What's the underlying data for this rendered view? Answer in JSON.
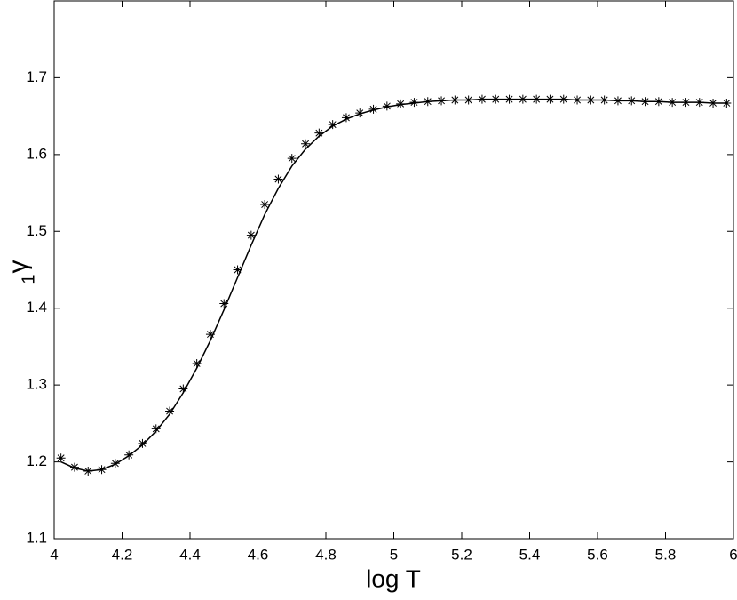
{
  "chart_data": {
    "type": "line",
    "xlabel": "log T",
    "ylabel": "γ",
    "ylabel_subscript": "1",
    "x": [
      4.02,
      4.06,
      4.1,
      4.14,
      4.18,
      4.22,
      4.26,
      4.3,
      4.34,
      4.38,
      4.42,
      4.46,
      4.5,
      4.54,
      4.58,
      4.62,
      4.66,
      4.7,
      4.74,
      4.78,
      4.82,
      4.86,
      4.9,
      4.94,
      4.98,
      5.02,
      5.06,
      5.1,
      5.14,
      5.18,
      5.22,
      5.26,
      5.3,
      5.34,
      5.38,
      5.42,
      5.46,
      5.5,
      5.54,
      5.58,
      5.62,
      5.66,
      5.7,
      5.74,
      5.78,
      5.82,
      5.86,
      5.9,
      5.94,
      5.98
    ],
    "series": [
      {
        "color": "#000000",
        "marker": "none",
        "values": [
          1.2,
          1.192,
          1.188,
          1.19,
          1.197,
          1.208,
          1.222,
          1.24,
          1.262,
          1.29,
          1.322,
          1.358,
          1.398,
          1.44,
          1.482,
          1.522,
          1.556,
          1.585,
          1.607,
          1.624,
          1.637,
          1.646,
          1.653,
          1.658,
          1.662,
          1.665,
          1.667,
          1.669,
          1.67,
          1.671,
          1.671,
          1.672,
          1.672,
          1.672,
          1.672,
          1.672,
          1.672,
          1.672,
          1.671,
          1.671,
          1.671,
          1.67,
          1.67,
          1.669,
          1.669,
          1.668,
          1.668,
          1.668,
          1.667,
          1.667
        ]
      },
      {
        "color": "#000000",
        "marker": "asterisk",
        "values": [
          1.205,
          1.193,
          1.188,
          1.19,
          1.198,
          1.209,
          1.224,
          1.243,
          1.266,
          1.295,
          1.328,
          1.366,
          1.406,
          1.45,
          1.495,
          1.535,
          1.568,
          1.595,
          1.614,
          1.628,
          1.639,
          1.648,
          1.654,
          1.659,
          1.663,
          1.666,
          1.668,
          1.669,
          1.67,
          1.671,
          1.671,
          1.672,
          1.672,
          1.672,
          1.672,
          1.672,
          1.672,
          1.672,
          1.671,
          1.671,
          1.671,
          1.67,
          1.67,
          1.669,
          1.669,
          1.668,
          1.668,
          1.668,
          1.667,
          1.667
        ]
      }
    ],
    "xlim": [
      4,
      6
    ],
    "ylim": [
      1.1,
      1.8
    ],
    "xticks": [
      4,
      4.2,
      4.4,
      4.6,
      4.8,
      5,
      5.2,
      5.4,
      5.6,
      5.8,
      6
    ],
    "yticks": [
      1.1,
      1.2,
      1.3,
      1.4,
      1.5,
      1.6,
      1.7
    ],
    "grid": false
  }
}
